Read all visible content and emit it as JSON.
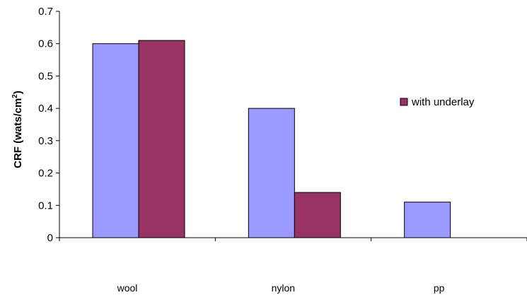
{
  "chart_data": {
    "type": "bar",
    "categories": [
      "wool",
      "nylon",
      "pp"
    ],
    "series": [
      {
        "values": [
          0.6,
          0.4,
          0.11
        ],
        "color": "#9999ff"
      },
      {
        "name": "with underlay",
        "values": [
          0.61,
          0.14,
          null
        ],
        "color": "#993366"
      }
    ],
    "ylabel": "CRF (wats/cm",
    "ylabel_superscript": "2",
    "ylabel_suffix": ")",
    "ylim": [
      0,
      0.7
    ],
    "yticks": [
      "0",
      "0.1",
      "0.2",
      "0.3",
      "0.4",
      "0.5",
      "0.6",
      "0.7"
    ],
    "grid": false,
    "legend": "right"
  }
}
